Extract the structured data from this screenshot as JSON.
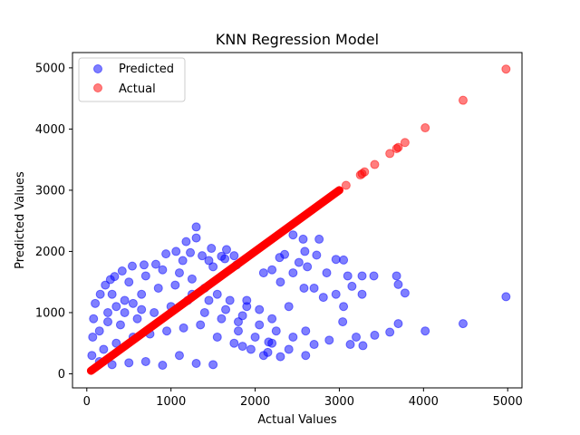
{
  "chart_data": {
    "type": "scatter",
    "title": "KNN Regression Model",
    "xlabel": "Actual Values",
    "ylabel": "Predicted Values",
    "xlim": [
      -170,
      5170
    ],
    "ylim": [
      -230,
      5250
    ],
    "xticks": [
      0,
      1000,
      2000,
      3000,
      4000,
      5000
    ],
    "yticks": [
      0,
      1000,
      2000,
      3000,
      4000,
      5000
    ],
    "grid": false,
    "legend": "upper-left",
    "series": [
      {
        "name": "Predicted",
        "color": "#0000ff",
        "alpha": 0.5,
        "points": [
          [
            1300,
            2400
          ],
          [
            1300,
            2220
          ],
          [
            1180,
            2160
          ],
          [
            1480,
            2050
          ],
          [
            1660,
            2030
          ],
          [
            1060,
            2000
          ],
          [
            1230,
            1980
          ],
          [
            940,
            1960
          ],
          [
            1370,
            1930
          ],
          [
            1600,
            1920
          ],
          [
            1750,
            1930
          ],
          [
            2350,
            1950
          ],
          [
            2450,
            2270
          ],
          [
            2570,
            2200
          ],
          [
            2760,
            2200
          ],
          [
            2590,
            2000
          ],
          [
            2730,
            1940
          ],
          [
            2290,
            1900
          ],
          [
            2520,
            1820
          ],
          [
            2960,
            1870
          ],
          [
            2620,
            1750
          ],
          [
            3050,
            1860
          ],
          [
            3100,
            1600
          ],
          [
            3270,
            1600
          ],
          [
            3150,
            1430
          ],
          [
            3410,
            1600
          ],
          [
            3680,
            1600
          ],
          [
            3700,
            1460
          ],
          [
            3780,
            1320
          ],
          [
            3270,
            1300
          ],
          [
            3050,
            1100
          ],
          [
            3700,
            820
          ],
          [
            3600,
            680
          ],
          [
            4020,
            700
          ],
          [
            4470,
            820
          ],
          [
            4980,
            1260
          ],
          [
            3420,
            630
          ],
          [
            3200,
            600
          ],
          [
            3280,
            460
          ],
          [
            2880,
            550
          ],
          [
            2700,
            480
          ],
          [
            3130,
            480
          ],
          [
            2600,
            700
          ],
          [
            2400,
            1100
          ],
          [
            2810,
            1250
          ],
          [
            2160,
            520
          ],
          [
            2300,
            280
          ],
          [
            2100,
            300
          ],
          [
            2300,
            1500
          ],
          [
            2200,
            1700
          ],
          [
            2100,
            1650
          ],
          [
            2580,
            1400
          ],
          [
            2960,
            1300
          ],
          [
            3040,
            850
          ],
          [
            2450,
            1650
          ],
          [
            2850,
            1650
          ],
          [
            2700,
            1400
          ],
          [
            1800,
            850
          ],
          [
            1900,
            1200
          ],
          [
            1850,
            450
          ],
          [
            1500,
            1750
          ],
          [
            1450,
            1850
          ],
          [
            1640,
            1880
          ],
          [
            1780,
            1780
          ],
          [
            1140,
            1850
          ],
          [
            820,
            1790
          ],
          [
            680,
            1780
          ],
          [
            540,
            1760
          ],
          [
            420,
            1680
          ],
          [
            330,
            1590
          ],
          [
            280,
            1540
          ],
          [
            220,
            1450
          ],
          [
            160,
            1300
          ],
          [
            100,
            1150
          ],
          [
            80,
            900
          ],
          [
            70,
            600
          ],
          [
            60,
            300
          ],
          [
            150,
            200
          ],
          [
            300,
            1300
          ],
          [
            500,
            1500
          ],
          [
            700,
            1600
          ],
          [
            900,
            1700
          ],
          [
            1100,
            1650
          ],
          [
            1250,
            1550
          ],
          [
            1400,
            1400
          ],
          [
            1550,
            1300
          ],
          [
            1700,
            1200
          ],
          [
            1900,
            1100
          ],
          [
            2050,
            1050
          ],
          [
            2200,
            900
          ],
          [
            400,
            800
          ],
          [
            600,
            900
          ],
          [
            800,
            1000
          ],
          [
            1000,
            1100
          ],
          [
            1200,
            1200
          ],
          [
            1400,
            1000
          ],
          [
            1600,
            900
          ],
          [
            1800,
            700
          ],
          [
            2000,
            600
          ],
          [
            2200,
            500
          ],
          [
            2400,
            400
          ],
          [
            2600,
            300
          ],
          [
            1500,
            150
          ],
          [
            1300,
            170
          ],
          [
            900,
            140
          ],
          [
            700,
            200
          ],
          [
            500,
            180
          ],
          [
            300,
            150
          ],
          [
            200,
            400
          ],
          [
            350,
            500
          ],
          [
            550,
            600
          ],
          [
            750,
            650
          ],
          [
            950,
            700
          ],
          [
            1150,
            750
          ],
          [
            1350,
            800
          ],
          [
            1550,
            600
          ],
          [
            1750,
            500
          ],
          [
            1950,
            400
          ],
          [
            2150,
            350
          ],
          [
            1100,
            300
          ],
          [
            250,
            1000
          ],
          [
            450,
            1200
          ],
          [
            650,
            1300
          ],
          [
            850,
            1400
          ],
          [
            1050,
            1450
          ],
          [
            1250,
            1300
          ],
          [
            1450,
            1200
          ],
          [
            1650,
            1050
          ],
          [
            1850,
            950
          ],
          [
            2050,
            800
          ],
          [
            2250,
            700
          ],
          [
            2450,
            600
          ],
          [
            150,
            700
          ],
          [
            250,
            850
          ],
          [
            350,
            1100
          ],
          [
            450,
            1000
          ],
          [
            550,
            1150
          ],
          [
            650,
            1050
          ]
        ]
      },
      {
        "name": "Actual",
        "color": "#ff0000",
        "alpha": 0.5,
        "line_points": [
          [
            50,
            50
          ],
          [
            3000,
            3000
          ]
        ],
        "points": [
          [
            3080,
            3080
          ],
          [
            3250,
            3250
          ],
          [
            3270,
            3270
          ],
          [
            3300,
            3300
          ],
          [
            3420,
            3420
          ],
          [
            3600,
            3600
          ],
          [
            3680,
            3680
          ],
          [
            3700,
            3700
          ],
          [
            3780,
            3780
          ],
          [
            4020,
            4020
          ],
          [
            4470,
            4470
          ],
          [
            4980,
            4980
          ]
        ]
      }
    ]
  }
}
